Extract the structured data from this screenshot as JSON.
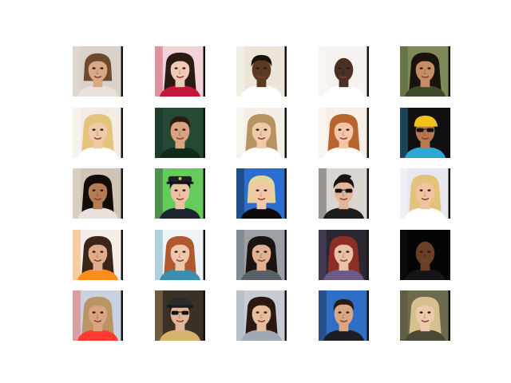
{
  "figure": {
    "rows": 5,
    "cols": 5,
    "thumbnails": [
      {
        "bg": "#d8d2c8",
        "skin": "#d9a987",
        "hair": "#6b4a2d",
        "accent": "#e8e2da",
        "hair_style": "bob",
        "glasses": false,
        "hat": null
      },
      {
        "bg": "#f1d3d8",
        "skin": "#efc9b6",
        "hair": "#2a1a14",
        "accent": "#c4183a",
        "hair_style": "long",
        "glasses": false,
        "hat": null
      },
      {
        "bg": "#ece6d8",
        "skin": "#5b3a24",
        "hair": "#1b120d",
        "accent": "#ffffff",
        "hair_style": "short",
        "glasses": false,
        "hat": null
      },
      {
        "bg": "#f5f2f0",
        "skin": "#4a3125",
        "hair": "#111111",
        "accent": "#ffffff",
        "hair_style": "bald",
        "glasses": false,
        "hat": null
      },
      {
        "bg": "#7d8a55",
        "skin": "#c48d66",
        "hair": "#1b120d",
        "accent": "#3d4b2a",
        "hair_style": "long",
        "glasses": false,
        "hat": null
      },
      {
        "bg": "#f2ede4",
        "skin": "#f0c9a8",
        "hair": "#e4c37a",
        "accent": "#ffffff",
        "hair_style": "long",
        "glasses": false,
        "hat": null
      },
      {
        "bg": "#244a33",
        "skin": "#d9a382",
        "hair": "#2a1a10",
        "accent": "#13291c",
        "hair_style": "short",
        "glasses": false,
        "hat": null
      },
      {
        "bg": "#f4efe6",
        "skin": "#f0c9a8",
        "hair": "#b69360",
        "accent": "#ffffff",
        "hair_style": "wavy",
        "glasses": false,
        "hat": null
      },
      {
        "bg": "#f5efe8",
        "skin": "#f2c6a6",
        "hair": "#b8642f",
        "accent": "#ffffff",
        "hair_style": "long",
        "glasses": false,
        "hat": null
      },
      {
        "bg": "#101010",
        "skin": "#b6784f",
        "hair": "#f2c11b",
        "accent": "#2aa9d4",
        "hair_style": "bandana",
        "glasses": true,
        "hat": null
      },
      {
        "bg": "#cfc5b6",
        "skin": "#b57b55",
        "hair": "#120c08",
        "accent": "#e8e2da",
        "hair_style": "long",
        "glasses": false,
        "hat": null
      },
      {
        "bg": "#64cc5a",
        "skin": "#edc2a2",
        "hair": "#141414",
        "accent": "#1c2430",
        "hair_style": "short",
        "glasses": false,
        "hat": "police"
      },
      {
        "bg": "#2a6fd0",
        "skin": "#f2c7a9",
        "hair": "#e7d29a",
        "accent": "#0c0c0c",
        "hair_style": "bob",
        "glasses": false,
        "hat": null
      },
      {
        "bg": "#dad6cf",
        "skin": "#e2b797",
        "hair": "#1a1410",
        "accent": "#1d1d1d",
        "hair_style": "quiff",
        "glasses": true,
        "hat": null
      },
      {
        "bg": "#e8e6ee",
        "skin": "#f0c4a2",
        "hair": "#e3c27a",
        "accent": "#ffffff",
        "hair_style": "long",
        "glasses": false,
        "hat": null
      },
      {
        "bg": "#f3efe8",
        "skin": "#e1ad88",
        "hair": "#3b2418",
        "accent": "#ff8c1a",
        "hair_style": "long",
        "glasses": false,
        "hat": null
      },
      {
        "bg": "#eef4f6",
        "skin": "#efc7ad",
        "hair": "#b1582e",
        "accent": "#3a8fb0",
        "hair_style": "long",
        "glasses": false,
        "hat": null
      },
      {
        "bg": "#9aa0a6",
        "skin": "#e0b293",
        "hair": "#1c130e",
        "accent": "#5a6066",
        "hair_style": "long",
        "glasses": false,
        "hat": null
      },
      {
        "bg": "#2a2733",
        "skin": "#eac1a6",
        "hair": "#8b2e24",
        "accent": "#6e5a8a",
        "hair_style": "long",
        "glasses": false,
        "hat": null
      },
      {
        "bg": "#050505",
        "skin": "#6a3f28",
        "hair": "#1a0f0a",
        "accent": "#151515",
        "hair_style": "bald",
        "glasses": false,
        "hat": null
      },
      {
        "bg": "#c9d3df",
        "skin": "#d9a580",
        "hair": "#b99464",
        "accent": "#ff3a30",
        "hair_style": "long",
        "glasses": false,
        "hat": null
      },
      {
        "bg": "#3b3026",
        "skin": "#e0b494",
        "hair": "#1a1a1a",
        "accent": "#d8b070",
        "hair_style": "short",
        "glasses": true,
        "hat": "cap"
      },
      {
        "bg": "#c7ccd4",
        "skin": "#e8bd9c",
        "hair": "#2a1a12",
        "accent": "#a0a8b4",
        "hair_style": "wavy",
        "glasses": false,
        "hat": null
      },
      {
        "bg": "#2e6ec4",
        "skin": "#d9a786",
        "hair": "#2b1c12",
        "accent": "#1c1e24",
        "hair_style": "short",
        "glasses": false,
        "hat": null
      },
      {
        "bg": "#6e6a4e",
        "skin": "#edc8ab",
        "hair": "#d6c08e",
        "accent": "#4c4836",
        "hair_style": "long",
        "glasses": false,
        "hat": null
      }
    ]
  }
}
